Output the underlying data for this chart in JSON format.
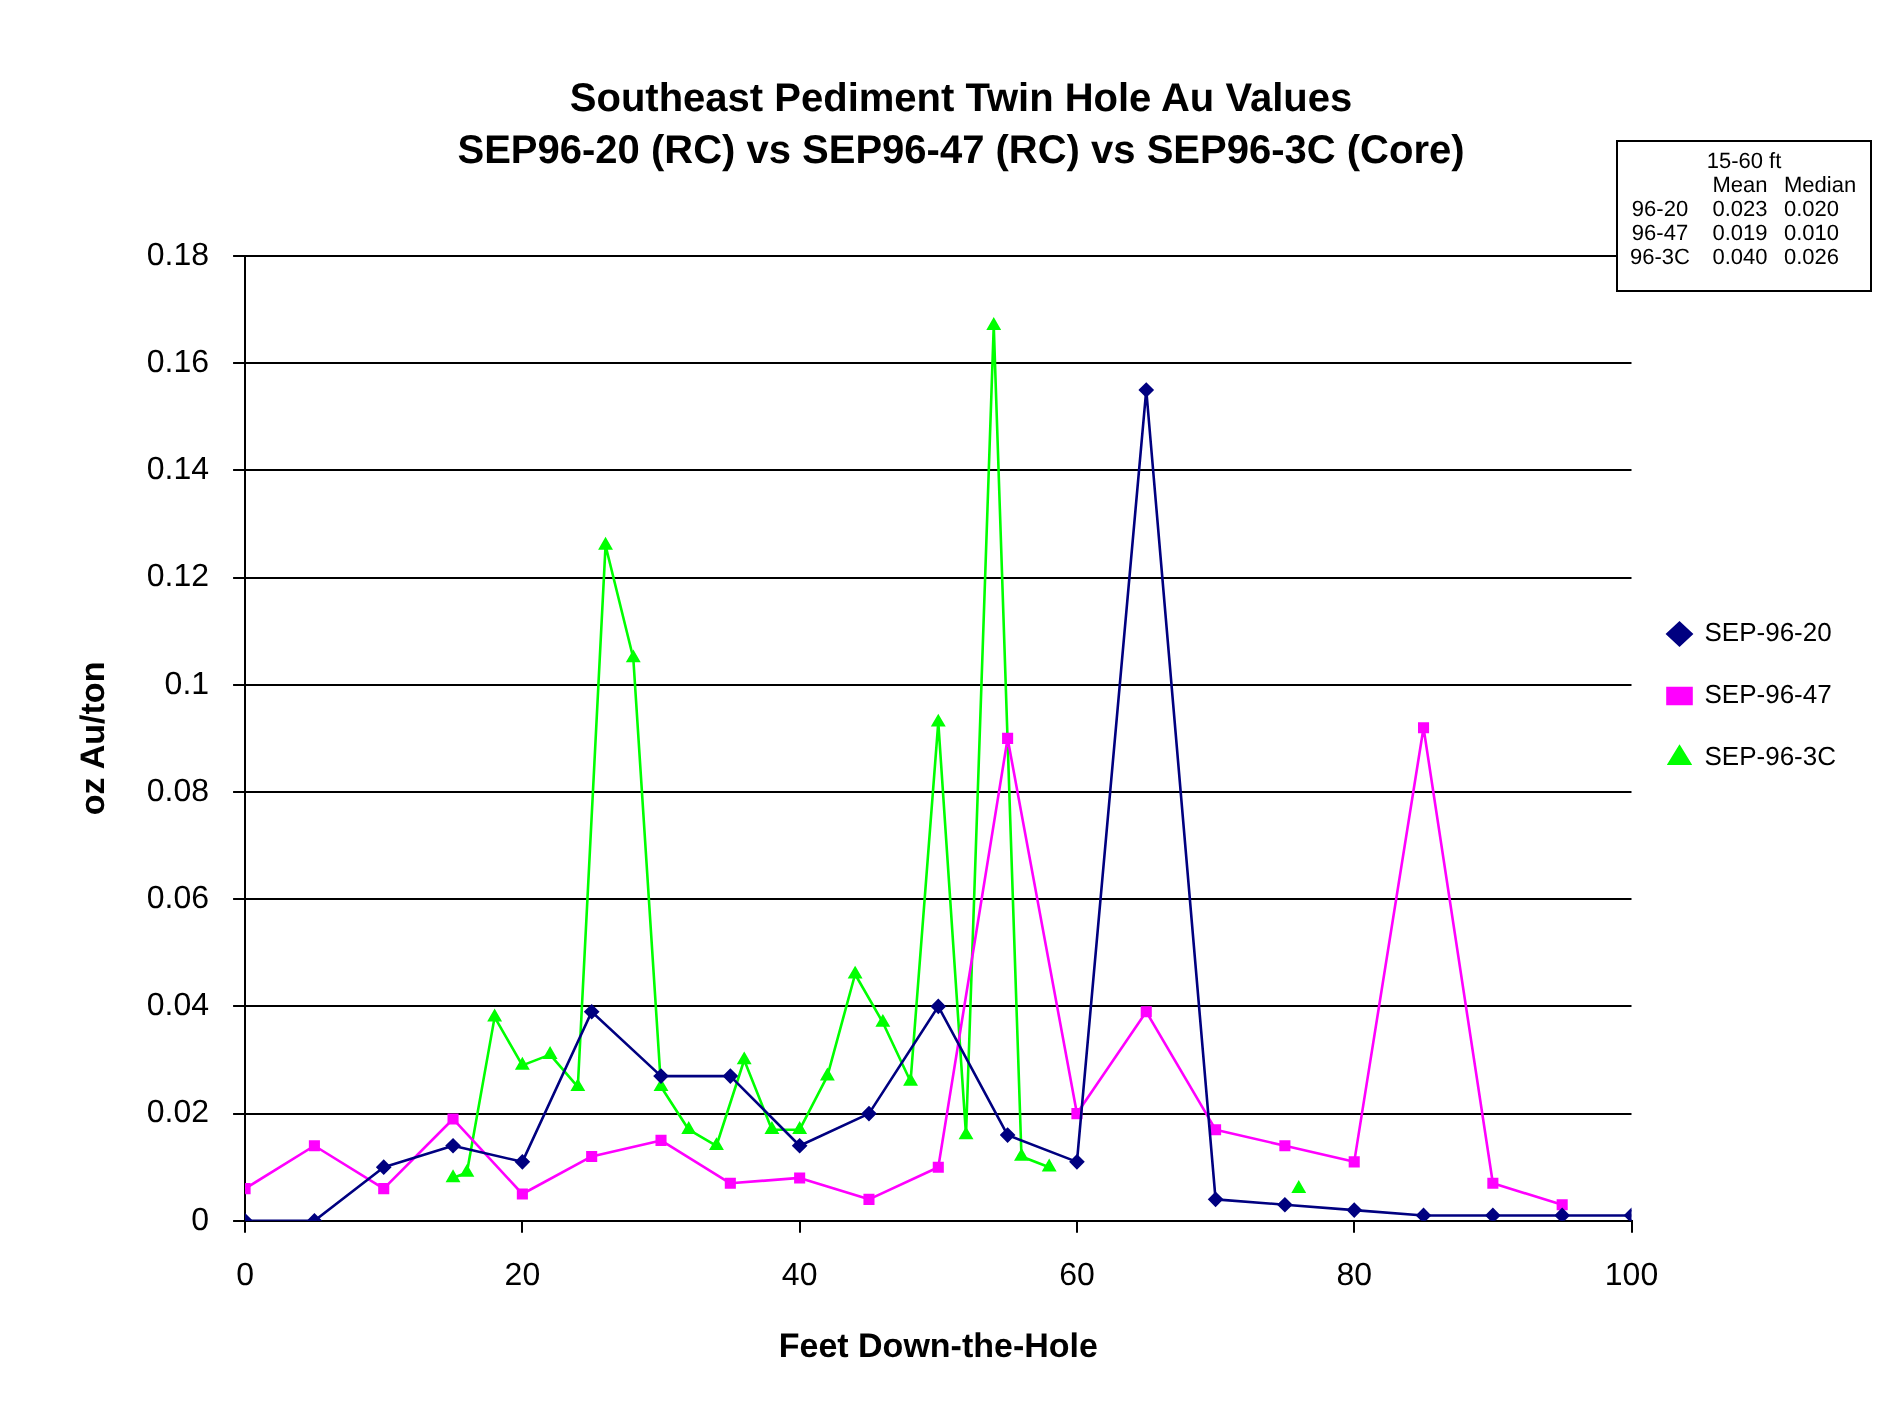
{
  "chart_data": {
    "type": "line",
    "title": "Southeast Pediment Twin Hole Au Values",
    "subtitle": "SEP96-20 (RC) vs SEP96-47 (RC) vs SEP96-3C (Core)",
    "xlabel": "Feet Down-the-Hole",
    "ylabel": "oz Au/ton",
    "xlim": [
      0,
      100
    ],
    "xticks": [
      0,
      20,
      40,
      60,
      80,
      100
    ],
    "ylim": [
      0,
      0.18
    ],
    "yticks": [
      0,
      0.02,
      0.04,
      0.06,
      0.08,
      {
        "value": 0.1,
        "label": "0.1"
      },
      0.12,
      0.14,
      0.16,
      0.18
    ],
    "grid": "y",
    "legend": "right",
    "series": [
      {
        "name": "SEP-96-20",
        "color": "#000080",
        "marker": "diamond",
        "x": [
          0,
          5,
          10,
          15,
          20,
          25,
          30,
          35,
          40,
          45,
          50,
          55,
          60,
          65,
          70,
          75,
          80,
          85,
          90,
          95,
          100
        ],
        "values": [
          0,
          0,
          0.01,
          0.014,
          0.011,
          0.039,
          0.027,
          0.027,
          0.014,
          0.02,
          0.04,
          0.016,
          0.011,
          0.155,
          0.004,
          0.003,
          0.002,
          0.001,
          0.001,
          0.001,
          0.001
        ]
      },
      {
        "name": "SEP-96-47",
        "color": "#ff00ff",
        "marker": "square",
        "x": [
          0,
          5,
          10,
          15,
          20,
          25,
          30,
          35,
          40,
          45,
          50,
          55,
          60,
          65,
          70,
          75,
          80,
          85,
          90,
          95
        ],
        "values": [
          0.006,
          0.014,
          0.006,
          0.019,
          0.005,
          0.012,
          0.015,
          0.007,
          0.008,
          0.004,
          0.01,
          0.09,
          0.02,
          0.039,
          0.017,
          0.014,
          0.011,
          0.092,
          0.007,
          0.003
        ]
      },
      {
        "name": "SEP-96-3C",
        "color": "#00ff00",
        "marker": "triangle",
        "x": [
          15,
          16,
          18,
          20,
          22,
          24,
          26,
          28,
          30,
          32,
          34,
          36,
          38,
          40,
          42,
          44,
          46,
          48,
          50,
          52,
          54,
          56,
          58,
          60,
          76
        ],
        "values": [
          0.008,
          0.009,
          0.038,
          0.029,
          0.031,
          0.025,
          0.126,
          0.105,
          0.025,
          0.017,
          0.014,
          0.03,
          0.017,
          0.017,
          0.027,
          0.046,
          0.037,
          0.026,
          0.093,
          0.016,
          0.167,
          0.012,
          0.01,
          null,
          0.006
        ]
      }
    ],
    "annotations": [
      "15-60 ft",
      "Mean",
      "Median",
      "96-20",
      "0.023",
      "0.020",
      "96-47",
      "0.019",
      "0.010",
      "96-3C",
      "0.040",
      "0.026"
    ]
  }
}
